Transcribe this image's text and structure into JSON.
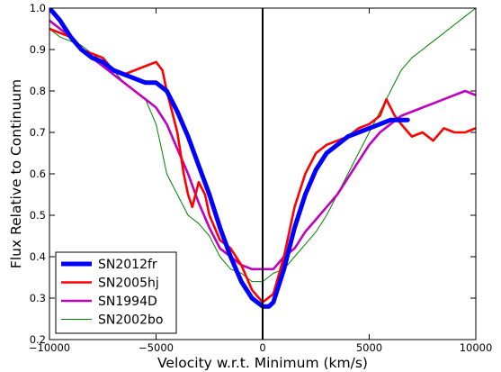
{
  "chart_data": {
    "type": "line",
    "title": "",
    "xlabel": "Velocity w.r.t. Minimum (km/s)",
    "ylabel": "Flux Relative to Continuum",
    "xlim": [
      -10000,
      10000
    ],
    "ylim": [
      0.2,
      1.0
    ],
    "x_ticks": [
      -10000,
      -5000,
      0,
      5000,
      10000
    ],
    "x_tick_labels": [
      "−10000",
      "−5000",
      "0",
      "5000",
      "10000"
    ],
    "y_ticks": [
      0.2,
      0.3,
      0.4,
      0.5,
      0.6,
      0.7,
      0.8,
      0.9,
      1.0
    ],
    "y_tick_labels": [
      "0.2",
      "0.3",
      "0.4",
      "0.5",
      "0.6",
      "0.7",
      "0.8",
      "0.9",
      "1.0"
    ],
    "grid": false,
    "legend_position": "lower-left",
    "reference_line": {
      "x": 0,
      "color": "#000000"
    },
    "series": [
      {
        "name": "SN2012fr",
        "color": "#0000ff",
        "style": "thick",
        "x": [
          -10000,
          -9500,
          -9000,
          -8500,
          -8000,
          -7500,
          -7000,
          -6500,
          -6000,
          -5500,
          -5000,
          -4500,
          -4000,
          -3500,
          -3000,
          -2500,
          -2000,
          -1500,
          -1000,
          -500,
          0,
          300,
          500,
          1000,
          1500,
          2000,
          2500,
          3000,
          3500,
          4000,
          4500,
          5000,
          5500,
          6000,
          6500,
          6800
        ],
        "y": [
          1.0,
          0.97,
          0.93,
          0.9,
          0.88,
          0.87,
          0.85,
          0.84,
          0.83,
          0.82,
          0.82,
          0.8,
          0.75,
          0.69,
          0.62,
          0.55,
          0.47,
          0.4,
          0.34,
          0.3,
          0.28,
          0.28,
          0.29,
          0.37,
          0.47,
          0.55,
          0.61,
          0.65,
          0.67,
          0.69,
          0.7,
          0.71,
          0.72,
          0.73,
          0.73,
          0.73
        ]
      },
      {
        "name": "SN2005hj",
        "color": "#ff0000",
        "style": "medium",
        "x": [
          -10000,
          -9500,
          -9000,
          -8500,
          -8000,
          -7500,
          -7000,
          -6500,
          -6000,
          -5500,
          -5000,
          -4700,
          -4500,
          -4000,
          -3700,
          -3500,
          -3300,
          -3000,
          -2700,
          -2500,
          -2000,
          -1500,
          -1000,
          -500,
          0,
          500,
          1000,
          1500,
          2000,
          2500,
          3000,
          3500,
          4000,
          4500,
          5000,
          5500,
          5800,
          6200,
          6500,
          7000,
          7500,
          8000,
          8500,
          9000,
          9500,
          10000
        ],
        "y": [
          0.95,
          0.94,
          0.93,
          0.9,
          0.89,
          0.88,
          0.85,
          0.84,
          0.85,
          0.86,
          0.87,
          0.85,
          0.8,
          0.7,
          0.6,
          0.55,
          0.52,
          0.58,
          0.55,
          0.5,
          0.44,
          0.42,
          0.38,
          0.32,
          0.29,
          0.31,
          0.4,
          0.52,
          0.6,
          0.65,
          0.67,
          0.68,
          0.69,
          0.71,
          0.72,
          0.74,
          0.78,
          0.74,
          0.72,
          0.69,
          0.7,
          0.68,
          0.71,
          0.7,
          0.7,
          0.71
        ]
      },
      {
        "name": "SN1994D",
        "color": "#bf00bf",
        "style": "medium",
        "x": [
          -10000,
          -9500,
          -9000,
          -8500,
          -8000,
          -7500,
          -7000,
          -6500,
          -6000,
          -5500,
          -5000,
          -4500,
          -4000,
          -3500,
          -3000,
          -2500,
          -2000,
          -1500,
          -1000,
          -500,
          0,
          500,
          1000,
          1500,
          2000,
          2500,
          3000,
          3500,
          4000,
          4500,
          5000,
          5500,
          6000,
          6500,
          7000,
          7500,
          8000,
          8500,
          9000,
          9500,
          10000
        ],
        "y": [
          0.97,
          0.95,
          0.93,
          0.9,
          0.88,
          0.86,
          0.84,
          0.82,
          0.8,
          0.78,
          0.76,
          0.72,
          0.66,
          0.6,
          0.53,
          0.47,
          0.42,
          0.4,
          0.38,
          0.37,
          0.37,
          0.37,
          0.4,
          0.42,
          0.46,
          0.49,
          0.52,
          0.55,
          0.59,
          0.63,
          0.67,
          0.7,
          0.72,
          0.74,
          0.75,
          0.76,
          0.77,
          0.78,
          0.79,
          0.8,
          0.79
        ]
      },
      {
        "name": "SN2002bo",
        "color": "#008000",
        "style": "thin",
        "x": [
          -10000,
          -9500,
          -9000,
          -8500,
          -8000,
          -7500,
          -7000,
          -6500,
          -6000,
          -5500,
          -5000,
          -4700,
          -4500,
          -4000,
          -3500,
          -3000,
          -2500,
          -2000,
          -1500,
          -1000,
          -500,
          0,
          500,
          1000,
          1500,
          2000,
          2500,
          3000,
          3500,
          4000,
          4500,
          5000,
          5500,
          6000,
          6500,
          7000,
          7500,
          8000,
          8500,
          9000,
          9500,
          10000
        ],
        "y": [
          0.95,
          0.93,
          0.92,
          0.91,
          0.89,
          0.87,
          0.85,
          0.82,
          0.8,
          0.78,
          0.72,
          0.65,
          0.6,
          0.55,
          0.5,
          0.48,
          0.45,
          0.4,
          0.37,
          0.36,
          0.34,
          0.34,
          0.36,
          0.37,
          0.4,
          0.43,
          0.46,
          0.5,
          0.55,
          0.6,
          0.65,
          0.7,
          0.75,
          0.8,
          0.85,
          0.88,
          0.9,
          0.92,
          0.94,
          0.96,
          0.98,
          1.0
        ]
      }
    ]
  }
}
